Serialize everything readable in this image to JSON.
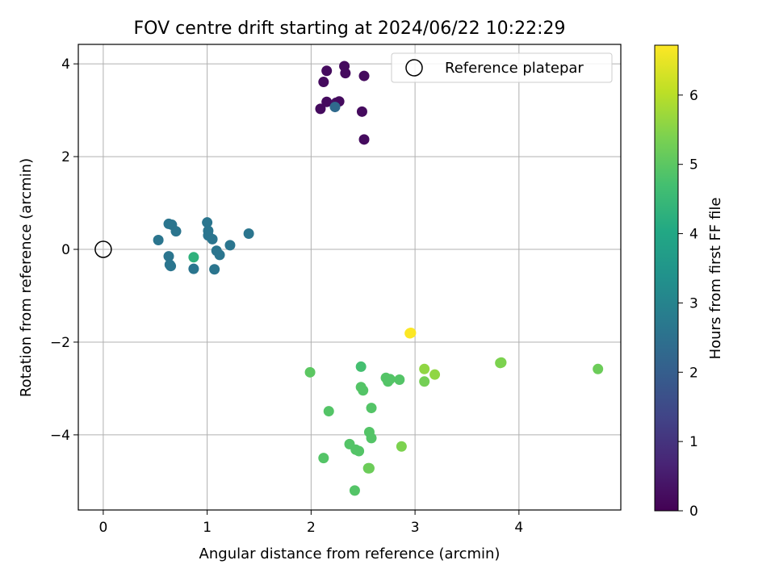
{
  "chart_data": {
    "type": "scatter",
    "title": "FOV centre drift starting at 2024/06/22 10:22:29",
    "xlabel": "Angular distance from reference (arcmin)",
    "ylabel": "Rotation from reference (arcmin)",
    "xlim": [
      -0.24,
      4.98
    ],
    "ylim": [
      -5.62,
      4.42
    ],
    "xticks": [
      0,
      1,
      2,
      3,
      4
    ],
    "yticks": [
      -4,
      -2,
      0,
      2,
      4
    ],
    "grid": true,
    "legend": {
      "placement": "top-right",
      "entries": [
        "Reference platepar"
      ]
    },
    "reference_point": {
      "x": 0,
      "y": 0,
      "label": "Reference platepar"
    },
    "colorbar": {
      "label": "Hours from first FF file",
      "range": [
        0,
        6.72
      ],
      "ticks": [
        0,
        1,
        2,
        3,
        4,
        5,
        6
      ],
      "colormap": "viridis"
    },
    "points": [
      {
        "x": 2.32,
        "y": 3.95,
        "h": 0.2
      },
      {
        "x": 2.15,
        "y": 3.85,
        "h": 0.2
      },
      {
        "x": 2.33,
        "y": 3.8,
        "h": 0.2
      },
      {
        "x": 2.51,
        "y": 3.74,
        "h": 0.2
      },
      {
        "x": 2.12,
        "y": 3.61,
        "h": 0.2
      },
      {
        "x": 2.15,
        "y": 3.18,
        "h": 0.2
      },
      {
        "x": 2.24,
        "y": 3.16,
        "h": 0.3
      },
      {
        "x": 2.27,
        "y": 3.19,
        "h": 0.2
      },
      {
        "x": 2.09,
        "y": 3.03,
        "h": 0.2
      },
      {
        "x": 2.23,
        "y": 3.07,
        "h": 2.3
      },
      {
        "x": 2.49,
        "y": 2.97,
        "h": 0.2
      },
      {
        "x": 2.51,
        "y": 2.37,
        "h": 0.2
      },
      {
        "x": 0.63,
        "y": 0.55,
        "h": 2.6
      },
      {
        "x": 0.66,
        "y": 0.53,
        "h": 2.6
      },
      {
        "x": 0.7,
        "y": 0.39,
        "h": 2.6
      },
      {
        "x": 0.53,
        "y": 0.2,
        "h": 2.6
      },
      {
        "x": 1.0,
        "y": 0.58,
        "h": 2.6
      },
      {
        "x": 1.01,
        "y": 0.4,
        "h": 2.6
      },
      {
        "x": 1.01,
        "y": 0.3,
        "h": 2.6
      },
      {
        "x": 1.05,
        "y": 0.22,
        "h": 2.6
      },
      {
        "x": 1.22,
        "y": 0.09,
        "h": 2.6
      },
      {
        "x": 1.4,
        "y": 0.34,
        "h": 2.6
      },
      {
        "x": 1.09,
        "y": -0.03,
        "h": 2.6
      },
      {
        "x": 1.12,
        "y": -0.12,
        "h": 2.6
      },
      {
        "x": 0.63,
        "y": -0.15,
        "h": 2.6
      },
      {
        "x": 0.64,
        "y": -0.33,
        "h": 2.6
      },
      {
        "x": 0.65,
        "y": -0.36,
        "h": 2.6
      },
      {
        "x": 0.87,
        "y": -0.42,
        "h": 2.6
      },
      {
        "x": 1.07,
        "y": -0.43,
        "h": 2.6
      },
      {
        "x": 0.87,
        "y": -0.17,
        "h": 4.3
      },
      {
        "x": 2.95,
        "y": -1.81,
        "h": 6.7
      },
      {
        "x": 2.96,
        "y": -1.8,
        "h": 6.7
      },
      {
        "x": 1.99,
        "y": -2.65,
        "h": 5.0
      },
      {
        "x": 2.48,
        "y": -2.53,
        "h": 4.7
      },
      {
        "x": 2.72,
        "y": -2.77,
        "h": 4.9
      },
      {
        "x": 2.74,
        "y": -2.85,
        "h": 4.9
      },
      {
        "x": 2.76,
        "y": -2.8,
        "h": 4.9
      },
      {
        "x": 2.85,
        "y": -2.81,
        "h": 4.9
      },
      {
        "x": 3.09,
        "y": -2.58,
        "h": 5.6
      },
      {
        "x": 3.09,
        "y": -2.85,
        "h": 5.3
      },
      {
        "x": 3.19,
        "y": -2.7,
        "h": 5.6
      },
      {
        "x": 3.82,
        "y": -2.45,
        "h": 5.4
      },
      {
        "x": 3.83,
        "y": -2.44,
        "h": 5.4
      },
      {
        "x": 4.76,
        "y": -2.58,
        "h": 5.2
      },
      {
        "x": 2.48,
        "y": -2.97,
        "h": 4.9
      },
      {
        "x": 2.5,
        "y": -3.04,
        "h": 4.9
      },
      {
        "x": 2.58,
        "y": -3.42,
        "h": 4.9
      },
      {
        "x": 2.17,
        "y": -3.49,
        "h": 4.9
      },
      {
        "x": 2.56,
        "y": -3.94,
        "h": 4.9
      },
      {
        "x": 2.58,
        "y": -4.07,
        "h": 4.9
      },
      {
        "x": 2.37,
        "y": -4.2,
        "h": 4.9
      },
      {
        "x": 2.43,
        "y": -4.32,
        "h": 4.9
      },
      {
        "x": 2.46,
        "y": -4.35,
        "h": 4.9
      },
      {
        "x": 2.87,
        "y": -4.25,
        "h": 5.4
      },
      {
        "x": 2.12,
        "y": -4.5,
        "h": 4.9
      },
      {
        "x": 2.55,
        "y": -4.72,
        "h": 5.2
      },
      {
        "x": 2.56,
        "y": -4.72,
        "h": 5.2
      },
      {
        "x": 2.42,
        "y": -5.2,
        "h": 4.9
      }
    ]
  }
}
